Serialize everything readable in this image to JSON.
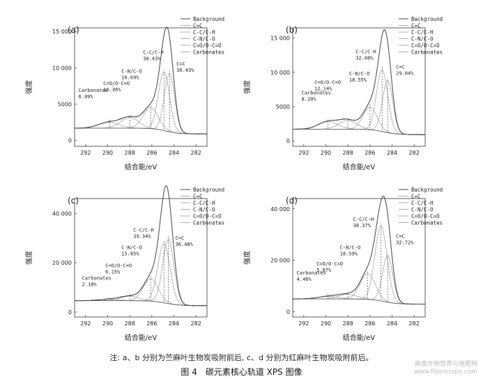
{
  "chart_data": [
    {
      "type": "line",
      "panel_label": "(a)",
      "xlabel": "结合能/eV",
      "ylabel": "强度",
      "x_ticks": [
        292,
        290,
        288,
        286,
        284,
        282
      ],
      "y_ticks": [
        0,
        5000,
        10000,
        15000
      ],
      "y_tick_labels": [
        "0",
        "5000",
        "10 000",
        "15 000"
      ],
      "xlim": [
        293,
        281
      ],
      "ylim": [
        -800,
        15500
      ],
      "legend": [
        "Background",
        "C=C",
        "C-C/C-H",
        "C-N/C-O",
        "C=O/O-C=O",
        "Carbonates"
      ],
      "legend_position": "top-right",
      "background_level": [
        1700,
        900
      ],
      "components": [
        {
          "name": "C=C",
          "center": 284.4,
          "fwhm": 1.1,
          "height": 8000
        },
        {
          "name": "C-C/C-H",
          "center": 284.9,
          "fwhm": 1.2,
          "height": 8000
        },
        {
          "name": "C-N/C-O",
          "center": 286.1,
          "fwhm": 1.6,
          "height": 2900
        },
        {
          "name": "C=O/O-C=O",
          "center": 288.0,
          "fwhm": 1.9,
          "height": 1450
        },
        {
          "name": "Carbonates",
          "center": 289.9,
          "fwhm": 2.2,
          "height": 800
        }
      ],
      "annotations": [
        {
          "text": "C=C",
          "pct": "30.43%",
          "x": 284.4
        },
        {
          "text": "C-C/C-H",
          "pct": "30.43%",
          "x": 284.9
        },
        {
          "text": "C-N/C-O",
          "pct": "16.69%",
          "x": 286.1
        },
        {
          "text": "C=O/O-C=O",
          "pct": "16.36%",
          "x": 288.0
        },
        {
          "text": "Carbonates",
          "pct": "6.09%",
          "x": 289.8
        }
      ]
    },
    {
      "type": "line",
      "panel_label": "(b)",
      "xlabel": "结合能/eV",
      "ylabel": "强度",
      "x_ticks": [
        292,
        290,
        288,
        286,
        284,
        282
      ],
      "y_ticks": [
        0,
        5000,
        10000,
        15000
      ],
      "y_tick_labels": [
        "0",
        "5000",
        "10 000",
        "15 000"
      ],
      "xlim": [
        293,
        281
      ],
      "ylim": [
        -800,
        16500
      ],
      "legend": [
        "Background",
        "C=C",
        "C-C/C-H",
        "C-N/C-O",
        "C=O/O-C=O",
        "Carbonates"
      ],
      "legend_position": "top-right",
      "background_level": [
        1700,
        900
      ],
      "components": [
        {
          "name": "C=C",
          "center": 284.4,
          "fwhm": 1.1,
          "height": 7600
        },
        {
          "name": "C-C/C-H",
          "center": 284.9,
          "fwhm": 1.2,
          "height": 9000
        },
        {
          "name": "C-N/C-O",
          "center": 286.0,
          "fwhm": 1.5,
          "height": 3300
        },
        {
          "name": "C=O/O-C=O",
          "center": 288.0,
          "fwhm": 1.9,
          "height": 1300
        },
        {
          "name": "Carbonates",
          "center": 289.8,
          "fwhm": 2.1,
          "height": 1100
        }
      ],
      "annotations": [
        {
          "text": "C=C",
          "pct": "29.04%",
          "x": 284.4
        },
        {
          "text": "C-C/C-H",
          "pct": "32.08%",
          "x": 284.9
        },
        {
          "text": "C-N/C-O",
          "pct": "18.55%",
          "x": 286.0
        },
        {
          "text": "C=O/O-C=O",
          "pct": "12.14%",
          "x": 288.0
        },
        {
          "text": "Carbonates",
          "pct": "8.20%",
          "x": 289.8
        }
      ]
    },
    {
      "type": "line",
      "panel_label": "(c)",
      "xlabel": "结合能/eV",
      "ylabel": "强度",
      "x_ticks": [
        292,
        290,
        288,
        286,
        284,
        282
      ],
      "y_ticks": [
        0,
        20000,
        40000
      ],
      "y_tick_labels": [
        "0",
        "20 000",
        "40 000"
      ],
      "xlim": [
        293,
        281
      ],
      "ylim": [
        -2000,
        46000
      ],
      "legend": [
        "Background",
        "C=C",
        "C-C/C-H",
        "C-N/C-O",
        "C=O/O-C=O",
        "Carbonates"
      ],
      "legend_position": "top-right",
      "background_level": [
        4600,
        2600
      ],
      "components": [
        {
          "name": "C=C",
          "center": 284.5,
          "fwhm": 1.2,
          "height": 26000
        },
        {
          "name": "C-C/C-H",
          "center": 284.9,
          "fwhm": 1.3,
          "height": 24000
        },
        {
          "name": "C-N/C-O",
          "center": 286.1,
          "fwhm": 1.6,
          "height": 9000
        },
        {
          "name": "C=O/O-C=O",
          "center": 288.0,
          "fwhm": 2.0,
          "height": 1800
        },
        {
          "name": "Carbonates",
          "center": 289.8,
          "fwhm": 2.2,
          "height": 600
        }
      ],
      "annotations": [
        {
          "text": "C=C",
          "pct": "36.48%",
          "x": 284.5
        },
        {
          "text": "C-C/C-H",
          "pct": "39.34%",
          "x": 284.9
        },
        {
          "text": "C-N/C-O",
          "pct": "15.85%",
          "x": 286.1
        },
        {
          "text": "C=O/O-C=O",
          "pct": "6.15%",
          "x": 288.0
        },
        {
          "text": "Carbonates",
          "pct": "2.18%",
          "x": 289.8
        }
      ]
    },
    {
      "type": "line",
      "panel_label": "(d)",
      "xlabel": "结合能/eV",
      "ylabel": "强度",
      "x_ticks": [
        292,
        290,
        288,
        286,
        284,
        282
      ],
      "y_ticks": [
        0,
        20000,
        40000
      ],
      "y_tick_labels": [
        "0",
        "20 000",
        "40 000"
      ],
      "xlim": [
        293,
        281
      ],
      "ylim": [
        -2000,
        44000
      ],
      "legend": [
        "Background",
        "C=C",
        "C-C/C-H",
        "C-N/C-O",
        "C=O/O-C=O",
        "Carbonates"
      ],
      "legend_position": "top-right",
      "background_level": [
        5000,
        3000
      ],
      "components": [
        {
          "name": "C=C",
          "center": 284.4,
          "fwhm": 1.1,
          "height": 18000
        },
        {
          "name": "C-C/C-H",
          "center": 285.0,
          "fwhm": 1.3,
          "height": 29000
        },
        {
          "name": "C-N/C-O",
          "center": 286.2,
          "fwhm": 1.6,
          "height": 10000
        },
        {
          "name": "C=O/O-C=O",
          "center": 288.0,
          "fwhm": 2.0,
          "height": 1800
        },
        {
          "name": "Carbonates",
          "center": 289.8,
          "fwhm": 2.2,
          "height": 1000
        }
      ],
      "annotations": [
        {
          "text": "C=C",
          "pct": "32.72%",
          "x": 284.4
        },
        {
          "text": "C-C/C-H",
          "pct": "38.37%",
          "x": 285.0
        },
        {
          "text": "C-N/C-O",
          "pct": "18.59%",
          "x": 286.2
        },
        {
          "text": "C=O/O-C=O",
          "pct": "5.87%",
          "x": 288.0
        },
        {
          "text": "Carbonates",
          "pct": "4.46%",
          "x": 289.8
        }
      ]
    }
  ],
  "note": "注: a、b 分别为苎麻叶生物炭吸附前后, c、d 分别为红麻叶生物炭吸附前后。",
  "caption": "图 4　碳元素核心轨道 XPS 图像",
  "watermark_line1": "麻类作物营养与施肥网",
  "watermark_line2": "www.fibercrops.com",
  "colors": {
    "envelope": "#3a3a3a",
    "component": "#9a9a9a",
    "background": "#555555",
    "raw": "#777777",
    "axis": "#333333"
  }
}
